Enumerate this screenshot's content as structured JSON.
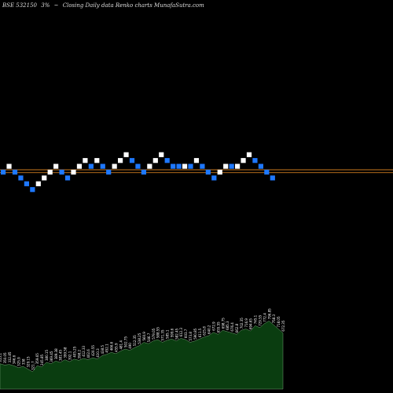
{
  "header": {
    "symbol": "BSE 532150",
    "percent": "3%",
    "separator": "~",
    "subtitle": "Closing Daily data Renko charts MunafaSutra.com"
  },
  "colors": {
    "background": "#000000",
    "up_brick": "#ffffff",
    "down_brick": "#1e78ff",
    "reference_line": "#c8781e",
    "volume_fill": "#0a3d10",
    "volume_stroke": "#8fbf8f"
  },
  "chart_data": [
    {
      "type": "renko",
      "title": "",
      "brick_levels": [
        0,
        1,
        0,
        -1,
        -2,
        -3,
        -2,
        -1,
        0,
        1,
        0,
        -1,
        0,
        1,
        2,
        1,
        2,
        1,
        0,
        1,
        2,
        3,
        2,
        1,
        0,
        1,
        2,
        3,
        2,
        1,
        1,
        1,
        1,
        2,
        1,
        0,
        -1,
        0,
        1,
        1,
        1,
        2,
        3,
        2,
        1,
        0,
        -1
      ],
      "brick_direction": [
        "down",
        "up",
        "down",
        "down",
        "down",
        "down",
        "up",
        "up",
        "up",
        "up",
        "down",
        "down",
        "up",
        "up",
        "up",
        "down",
        "up",
        "down",
        "down",
        "up",
        "up",
        "up",
        "down",
        "down",
        "down",
        "up",
        "up",
        "up",
        "down",
        "down",
        "down",
        "up",
        "down",
        "up",
        "down",
        "down",
        "down",
        "up",
        "up",
        "down",
        "up",
        "up",
        "up",
        "down",
        "down",
        "down",
        "down"
      ],
      "reference_levels": [
        0.0,
        -0.5
      ]
    },
    {
      "type": "area",
      "title": "",
      "values": [
        38,
        36,
        37,
        35,
        32,
        34,
        30,
        26,
        35,
        33,
        40,
        38,
        42,
        40,
        44,
        41,
        45,
        43,
        46,
        44,
        47,
        45,
        50,
        52,
        55,
        53,
        57,
        60,
        58,
        62,
        65,
        70,
        68,
        72,
        74,
        70,
        73,
        75,
        72,
        76,
        74,
        70,
        72,
        75,
        78,
        80,
        85,
        82,
        88,
        86,
        84,
        82,
        88,
        90,
        87,
        95,
        92,
        98,
        102,
        96,
        90,
        84
      ],
      "labels": [
        "355.1",
        "350.05",
        "332.85",
        "346.6",
        "325.9",
        "338",
        "329.15",
        "321.7",
        "359.65",
        "345.85",
        "380.15",
        "369.45",
        "389.38",
        "381.45",
        "399.58",
        "392.1",
        "405.25",
        "398.2",
        "412.33",
        "402.6",
        "420.55",
        "410.3",
        "438.5",
        "452.1",
        "466.6",
        "455.9",
        "481.4",
        "502.75",
        "490",
        "512.35",
        "538.25",
        "560.9",
        "546.7",
        "579.05",
        "588.55",
        "571.35",
        "585.1",
        "599.6",
        "582.45",
        "612.3",
        "603.7",
        "573.8",
        "590.85",
        "611.5",
        "625.8",
        "640.2",
        "672.9",
        "655.55",
        "698.75",
        "685.3",
        "676.4",
        "662.8",
        "702.35",
        "716.9",
        "694.65",
        "745.1",
        "729.55",
        "772.4",
        "796.85",
        "758.3",
        "718.05",
        "672.35"
      ]
    }
  ]
}
